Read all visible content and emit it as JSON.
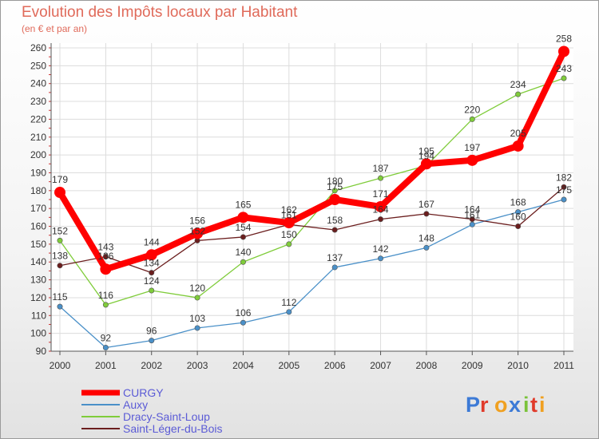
{
  "chart_data": {
    "type": "line",
    "title": "Evolution des Impôts locaux par Habitant",
    "subtitle": "(en € et par an)",
    "xlabel": "",
    "ylabel": "",
    "ylim": [
      90,
      260
    ],
    "yticks": [
      90,
      100,
      110,
      120,
      130,
      140,
      150,
      160,
      170,
      180,
      190,
      200,
      210,
      220,
      230,
      240,
      250,
      260
    ],
    "categories": [
      "2000",
      "2001",
      "2002",
      "2003",
      "2004",
      "2005",
      "2006",
      "2007",
      "2008",
      "2009",
      "2010",
      "2011"
    ],
    "grid": true,
    "legend_position": "bottom-left",
    "series": [
      {
        "name": "CURGY",
        "color": "#ff0000",
        "emphasis": true,
        "values": [
          179,
          136,
          144,
          156,
          165,
          162,
          175,
          171,
          195,
          197,
          205,
          258
        ]
      },
      {
        "name": "Auxy",
        "color": "#4a90c8",
        "emphasis": false,
        "values": [
          115,
          92,
          96,
          103,
          106,
          112,
          137,
          142,
          148,
          161,
          168,
          175
        ]
      },
      {
        "name": "Dracy-Saint-Loup",
        "color": "#7fcc3a",
        "emphasis": false,
        "values": [
          152,
          116,
          124,
          120,
          140,
          150,
          180,
          187,
          194,
          220,
          234,
          243
        ]
      },
      {
        "name": "Saint-Léger-du-Bois",
        "color": "#6b1e1e",
        "emphasis": false,
        "values": [
          138,
          143,
          134,
          152,
          154,
          161,
          158,
          164,
          167,
          164,
          160,
          182
        ]
      }
    ]
  },
  "logo": {
    "text": "Proxiti",
    "letter_colors": [
      "#3c7ad6",
      "#e03a2a",
      "#f0a020",
      "#3c7ad6",
      "#7ac23a",
      "#e03a2a",
      "#f0a020"
    ]
  }
}
